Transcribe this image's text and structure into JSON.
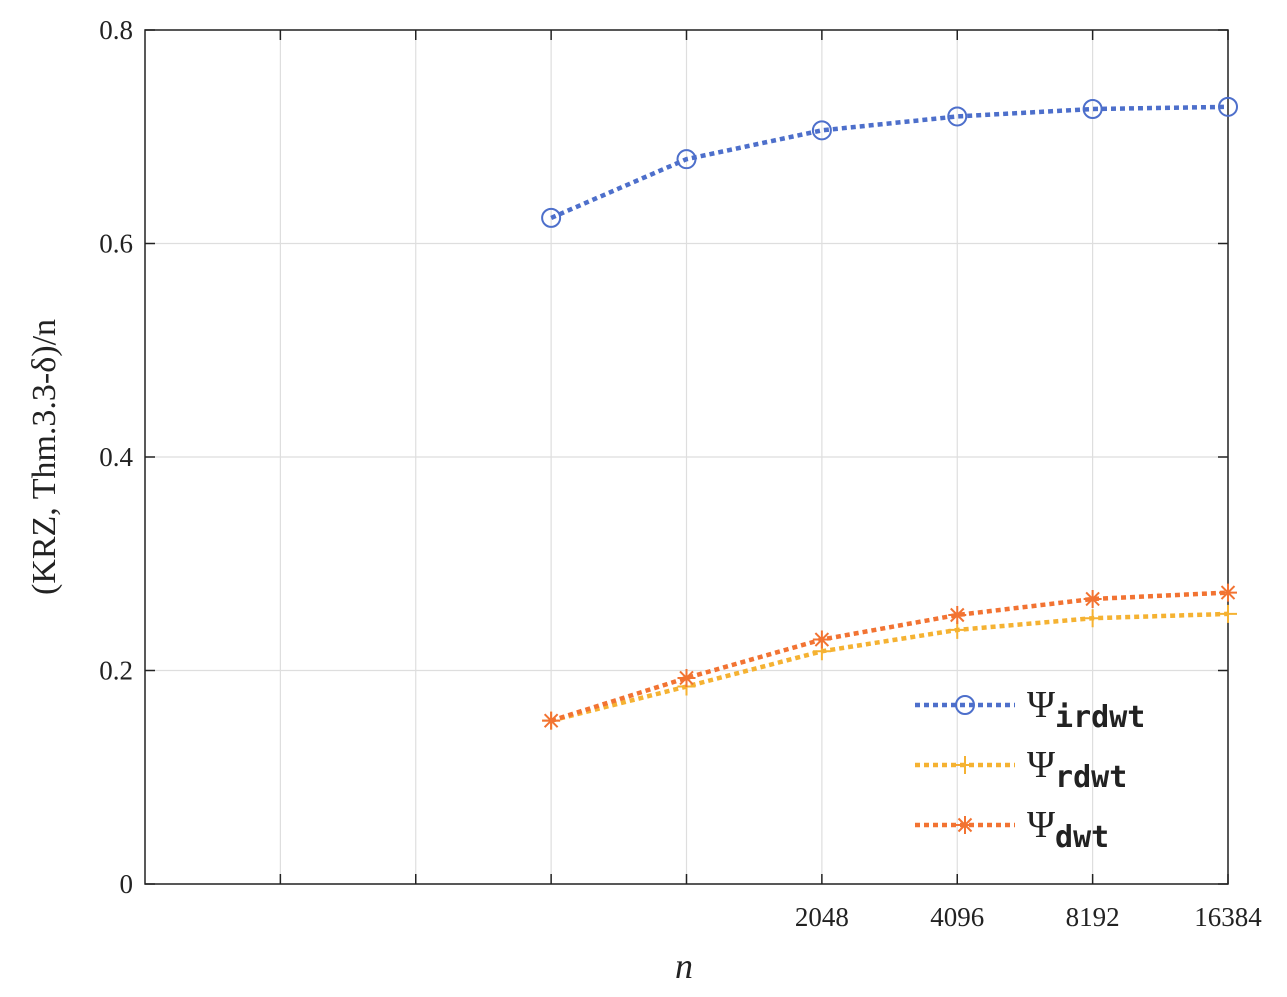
{
  "chart_data": {
    "type": "line",
    "xlabel": "n",
    "ylabel": "(KRZ, Thm.3.3-δ)/n",
    "x": [
      512,
      1024,
      2048,
      4096,
      8192,
      16384
    ],
    "series": [
      {
        "name": "Ψirdwt",
        "color": "#4d6fcb",
        "marker": "circle",
        "values": [
          0.624,
          0.679,
          0.706,
          0.719,
          0.726,
          0.728
        ]
      },
      {
        "name": "Ψrdwt",
        "color": "#f5b232",
        "marker": "plus",
        "values": [
          0.153,
          0.185,
          0.218,
          0.238,
          0.249,
          0.253
        ]
      },
      {
        "name": "Ψdwt",
        "color": "#f27332",
        "marker": "star",
        "values": [
          0.153,
          0.193,
          0.229,
          0.252,
          0.267,
          0.273
        ]
      }
    ],
    "xlim": [
      64,
      16384
    ],
    "xticks": [
      2048,
      4096,
      8192,
      16384
    ],
    "xminor_ticks": [
      128,
      256,
      512,
      1024
    ],
    "ylim": [
      0,
      0.8
    ],
    "yticks": [
      0,
      0.2,
      0.4,
      0.6,
      0.8
    ],
    "grid": true,
    "legend": "lower right"
  }
}
